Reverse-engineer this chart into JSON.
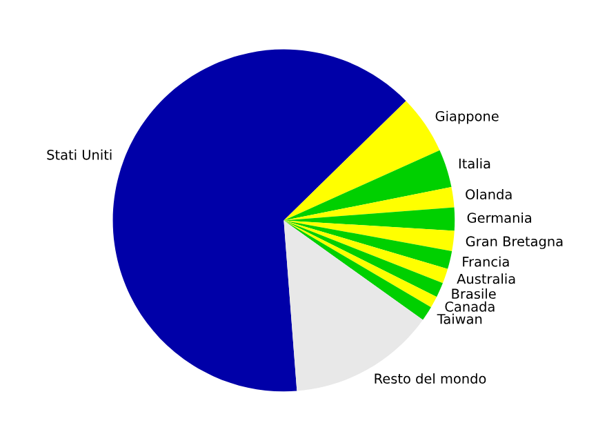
{
  "chart_data": {
    "type": "pie",
    "categories": [
      "Stati Uniti",
      "Giappone",
      "Italia",
      "Olanda",
      "Germania",
      "Gran Bretagna",
      "Francia",
      "Australia",
      "Brasile",
      "Canada",
      "Taiwan",
      "Resto del mondo"
    ],
    "values": [
      63.9,
      5.6,
      3.6,
      1.9,
      2.2,
      1.9,
      1.7,
      1.4,
      1.4,
      1.1,
      1.4,
      13.9
    ],
    "colors": [
      "#0000a8",
      "#ffff00",
      "#00d000",
      "#ffff00",
      "#00d000",
      "#ffff00",
      "#00d000",
      "#ffff00",
      "#00d000",
      "#ffff00",
      "#00d000",
      "#e8e8e8"
    ]
  }
}
